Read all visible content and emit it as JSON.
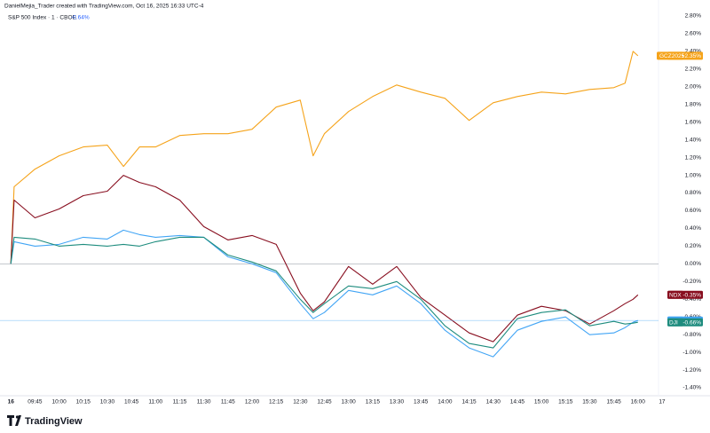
{
  "header": {
    "attribution": "DanielMejia_Trader created with TradingView.com, Oct 16, 2025 16:33 UTC-4",
    "symbol": "S&P 500 Index · 1 · CBOE",
    "change": "-0.64%"
  },
  "footer": {
    "brand": "TradingView"
  },
  "chart_data": {
    "type": "line",
    "x": [
      570,
      572,
      585,
      600,
      615,
      630,
      640,
      650,
      660,
      675,
      690,
      705,
      720,
      735,
      750,
      758,
      765,
      780,
      795,
      810,
      825,
      840,
      855,
      870,
      885,
      900,
      915,
      930,
      945,
      952,
      957,
      960
    ],
    "xlim": [
      566,
      980
    ],
    "xticks": [
      {
        "value": 570,
        "label": "16"
      },
      {
        "value": 585,
        "label": "09:45"
      },
      {
        "value": 600,
        "label": "10:00"
      },
      {
        "value": 615,
        "label": "10:15"
      },
      {
        "value": 630,
        "label": "10:30"
      },
      {
        "value": 645,
        "label": "10:45"
      },
      {
        "value": 660,
        "label": "11:00"
      },
      {
        "value": 675,
        "label": "11:15"
      },
      {
        "value": 690,
        "label": "11:30"
      },
      {
        "value": 705,
        "label": "11:45"
      },
      {
        "value": 720,
        "label": "12:00"
      },
      {
        "value": 735,
        "label": "12:15"
      },
      {
        "value": 750,
        "label": "12:30"
      },
      {
        "value": 765,
        "label": "12:45"
      },
      {
        "value": 780,
        "label": "13:00"
      },
      {
        "value": 795,
        "label": "13:15"
      },
      {
        "value": 810,
        "label": "13:30"
      },
      {
        "value": 825,
        "label": "13:45"
      },
      {
        "value": 840,
        "label": "14:00"
      },
      {
        "value": 855,
        "label": "14:15"
      },
      {
        "value": 870,
        "label": "14:30"
      },
      {
        "value": 885,
        "label": "14:45"
      },
      {
        "value": 900,
        "label": "15:00"
      },
      {
        "value": 915,
        "label": "15:15"
      },
      {
        "value": 930,
        "label": "15:30"
      },
      {
        "value": 945,
        "label": "15:45"
      },
      {
        "value": 960,
        "label": "16:00"
      },
      {
        "value": 975,
        "label": "17"
      }
    ],
    "ylim": [
      -1.5,
      2.9
    ],
    "yticks": [
      {
        "value": 2.8,
        "label": "2.80%"
      },
      {
        "value": 2.6,
        "label": "2.60%"
      },
      {
        "value": 2.4,
        "label": "2.40%"
      },
      {
        "value": 2.2,
        "label": "2.20%"
      },
      {
        "value": 2.0,
        "label": "2.00%"
      },
      {
        "value": 1.8,
        "label": "1.80%"
      },
      {
        "value": 1.6,
        "label": "1.60%"
      },
      {
        "value": 1.4,
        "label": "1.40%"
      },
      {
        "value": 1.2,
        "label": "1.20%"
      },
      {
        "value": 1.0,
        "label": "1.00%"
      },
      {
        "value": 0.8,
        "label": "0.80%"
      },
      {
        "value": 0.6,
        "label": "0.60%"
      },
      {
        "value": 0.4,
        "label": "0.40%"
      },
      {
        "value": 0.2,
        "label": "0.20%"
      },
      {
        "value": 0,
        "label": "0.00%"
      },
      {
        "value": -0.2,
        "label": "-0.20%"
      },
      {
        "value": -0.4,
        "label": "-0.40%"
      },
      {
        "value": -0.6,
        "label": "-0.60%"
      },
      {
        "value": -0.8,
        "label": "-0.80%"
      },
      {
        "value": -1.0,
        "label": "-1.00%"
      },
      {
        "value": -1.2,
        "label": "-1.20%"
      },
      {
        "value": -1.4,
        "label": "-1.40%"
      }
    ],
    "series": [
      {
        "name": "GCZ2025",
        "color": "#f5a31a",
        "last_label": "+2.35%",
        "values": [
          0,
          0.87,
          1.07,
          1.22,
          1.32,
          1.34,
          1.1,
          1.32,
          1.32,
          1.45,
          1.47,
          1.47,
          1.52,
          1.77,
          1.85,
          1.22,
          1.47,
          1.72,
          1.89,
          2.02,
          1.94,
          1.87,
          1.62,
          1.82,
          1.89,
          1.94,
          1.92,
          1.97,
          1.99,
          2.04,
          2.4,
          2.35
        ]
      },
      {
        "name": "NDX",
        "color": "#880e1f",
        "last_label": "-0.35%",
        "values": [
          0,
          0.72,
          0.52,
          0.62,
          0.77,
          0.82,
          1.0,
          0.92,
          0.87,
          0.72,
          0.42,
          0.27,
          0.32,
          0.22,
          -0.33,
          -0.53,
          -0.43,
          -0.03,
          -0.23,
          -0.03,
          -0.38,
          -0.58,
          -0.78,
          -0.88,
          -0.58,
          -0.48,
          -0.53,
          -0.68,
          -0.53,
          -0.45,
          -0.4,
          -0.35
        ]
      },
      {
        "name": "SPX",
        "color": "#42a5f5",
        "last_label": "-0.64%",
        "values": [
          0,
          0.25,
          0.2,
          0.22,
          0.3,
          0.28,
          0.38,
          0.33,
          0.3,
          0.32,
          0.3,
          0.08,
          0.0,
          -0.1,
          -0.45,
          -0.62,
          -0.55,
          -0.3,
          -0.35,
          -0.25,
          -0.45,
          -0.75,
          -0.95,
          -1.05,
          -0.75,
          -0.65,
          -0.6,
          -0.8,
          -0.78,
          -0.72,
          -0.66,
          -0.64
        ]
      },
      {
        "name": "DJI",
        "color": "#1e8c7e",
        "last_label": "-0.66%",
        "values": [
          0,
          0.3,
          0.28,
          0.2,
          0.22,
          0.2,
          0.22,
          0.2,
          0.25,
          0.3,
          0.3,
          0.1,
          0.02,
          -0.08,
          -0.4,
          -0.55,
          -0.45,
          -0.25,
          -0.28,
          -0.2,
          -0.4,
          -0.7,
          -0.9,
          -0.95,
          -0.62,
          -0.55,
          -0.52,
          -0.7,
          -0.65,
          -0.68,
          -0.67,
          -0.66
        ]
      }
    ]
  }
}
